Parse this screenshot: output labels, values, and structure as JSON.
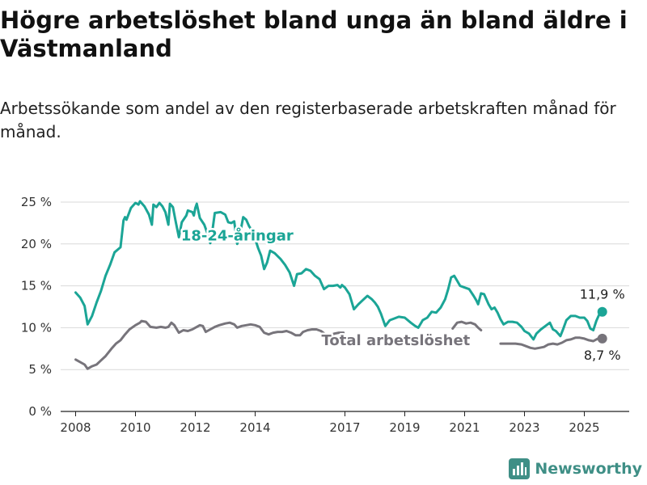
{
  "header": {
    "title": "Högre arbetslöshet bland unga än bland äldre i Västmanland",
    "subtitle": "Arbetssökande som andel av den registerbaserade arbetskraften månad för månad."
  },
  "brand": {
    "name": "Newsworthy",
    "icon": "bar-chart-logo-icon",
    "color": "#3f8f86"
  },
  "chart_data": {
    "type": "line",
    "xlim": [
      2007.5,
      2026.5
    ],
    "ylim": [
      0,
      25
    ],
    "x_ticks": [
      2008,
      2010,
      2012,
      2014,
      2017,
      2019,
      2021,
      2023,
      2025
    ],
    "x_tick_labels": [
      "2008",
      "2010",
      "2012",
      "2014",
      "2017",
      "2019",
      "2021",
      "2023",
      "2025"
    ],
    "y_ticks": [
      0,
      5,
      10,
      15,
      20,
      25
    ],
    "y_tick_labels": [
      "0 %",
      "5 %",
      "10 %",
      "15 %",
      "20 %",
      "25 %"
    ],
    "grid": "horizontal",
    "series": [
      {
        "name": "18-24-åringar",
        "color": "#1ba596",
        "end_label": "11,9 %",
        "points": [
          [
            2008.0,
            14.2
          ],
          [
            2008.15,
            13.6
          ],
          [
            2008.3,
            12.6
          ],
          [
            2008.4,
            10.4
          ],
          [
            2008.55,
            11.4
          ],
          [
            2008.7,
            13.0
          ],
          [
            2008.85,
            14.4
          ],
          [
            2009.0,
            16.2
          ],
          [
            2009.15,
            17.5
          ],
          [
            2009.3,
            19.0
          ],
          [
            2009.5,
            19.6
          ],
          [
            2009.6,
            22.8
          ],
          [
            2009.65,
            23.2
          ],
          [
            2009.7,
            22.9
          ],
          [
            2009.85,
            24.3
          ],
          [
            2010.0,
            24.9
          ],
          [
            2010.1,
            24.7
          ],
          [
            2010.15,
            25.1
          ],
          [
            2010.3,
            24.5
          ],
          [
            2010.45,
            23.5
          ],
          [
            2010.55,
            22.3
          ],
          [
            2010.6,
            24.7
          ],
          [
            2010.7,
            24.4
          ],
          [
            2010.8,
            24.9
          ],
          [
            2010.9,
            24.5
          ],
          [
            2011.0,
            23.8
          ],
          [
            2011.1,
            22.3
          ],
          [
            2011.15,
            24.8
          ],
          [
            2011.25,
            24.4
          ],
          [
            2011.35,
            22.6
          ],
          [
            2011.45,
            20.8
          ],
          [
            2011.55,
            22.6
          ],
          [
            2011.7,
            23.4
          ],
          [
            2011.75,
            24.0
          ],
          [
            2011.9,
            23.8
          ],
          [
            2011.95,
            23.4
          ],
          [
            2012.0,
            24.3
          ],
          [
            2012.05,
            24.8
          ],
          [
            2012.15,
            23.1
          ],
          [
            2012.3,
            22.3
          ],
          [
            2012.4,
            21.3
          ],
          [
            2012.5,
            20.1
          ],
          [
            2012.55,
            21.0
          ],
          [
            2012.65,
            23.7
          ],
          [
            2012.85,
            23.8
          ],
          [
            2013.0,
            23.5
          ],
          [
            2013.1,
            22.6
          ],
          [
            2013.2,
            22.5
          ],
          [
            2013.3,
            22.7
          ],
          [
            2013.4,
            20.0
          ],
          [
            2013.5,
            21.3
          ],
          [
            2013.6,
            23.2
          ],
          [
            2013.7,
            22.9
          ],
          [
            2013.8,
            22.1
          ],
          [
            2013.9,
            21.6
          ],
          [
            2014.0,
            20.6
          ],
          [
            2014.1,
            19.5
          ],
          [
            2014.2,
            18.6
          ],
          [
            2014.3,
            17.0
          ],
          [
            2014.4,
            17.8
          ],
          [
            2014.5,
            19.2
          ],
          [
            2014.65,
            18.9
          ],
          [
            2014.85,
            18.2
          ],
          [
            2015.0,
            17.5
          ],
          [
            2015.15,
            16.6
          ],
          [
            2015.3,
            15.0
          ],
          [
            2015.4,
            16.4
          ],
          [
            2015.55,
            16.5
          ],
          [
            2015.7,
            17.0
          ],
          [
            2015.85,
            16.8
          ],
          [
            2016.0,
            16.2
          ],
          [
            2016.15,
            15.8
          ],
          [
            2016.3,
            14.6
          ],
          [
            2016.45,
            15.0
          ],
          [
            2016.6,
            15.0
          ],
          [
            2016.75,
            15.1
          ],
          [
            2016.85,
            14.8
          ],
          [
            2016.9,
            15.1
          ],
          [
            2017.0,
            14.8
          ],
          [
            2017.15,
            14.0
          ],
          [
            2017.3,
            12.2
          ],
          [
            2017.45,
            12.8
          ],
          [
            2017.6,
            13.3
          ],
          [
            2017.75,
            13.8
          ],
          [
            2017.9,
            13.4
          ],
          [
            2018.0,
            13.0
          ],
          [
            2018.1,
            12.5
          ],
          [
            2018.2,
            11.7
          ],
          [
            2018.35,
            10.2
          ],
          [
            2018.5,
            10.9
          ],
          [
            2018.65,
            11.1
          ],
          [
            2018.8,
            11.3
          ],
          [
            2019.0,
            11.2
          ],
          [
            2019.2,
            10.6
          ],
          [
            2019.35,
            10.2
          ],
          [
            2019.45,
            10.0
          ],
          [
            2019.6,
            10.9
          ],
          [
            2019.75,
            11.2
          ],
          [
            2019.9,
            11.9
          ],
          [
            2020.05,
            11.8
          ],
          [
            2020.2,
            12.4
          ],
          [
            2020.35,
            13.4
          ],
          [
            2020.45,
            14.6
          ],
          [
            2020.55,
            16.0
          ],
          [
            2020.65,
            16.2
          ],
          [
            2020.75,
            15.6
          ],
          [
            2020.85,
            15.0
          ],
          [
            2021.0,
            14.8
          ],
          [
            2021.15,
            14.6
          ],
          [
            2021.3,
            13.8
          ],
          [
            2021.4,
            13.2
          ],
          [
            2021.45,
            12.8
          ],
          [
            2021.55,
            14.1
          ],
          [
            2021.65,
            14.0
          ],
          [
            2021.8,
            12.8
          ],
          [
            2021.9,
            12.2
          ],
          [
            2022.0,
            12.4
          ],
          [
            2022.1,
            11.8
          ],
          [
            2022.2,
            11.0
          ],
          [
            2022.3,
            10.4
          ],
          [
            2022.45,
            10.7
          ],
          [
            2022.6,
            10.7
          ],
          [
            2022.75,
            10.6
          ],
          [
            2022.9,
            10.1
          ],
          [
            2023.0,
            9.6
          ],
          [
            2023.15,
            9.3
          ],
          [
            2023.3,
            8.6
          ],
          [
            2023.4,
            9.3
          ],
          [
            2023.55,
            9.8
          ],
          [
            2023.7,
            10.2
          ],
          [
            2023.85,
            10.6
          ],
          [
            2023.95,
            9.8
          ],
          [
            2024.05,
            9.6
          ],
          [
            2024.2,
            9.0
          ],
          [
            2024.3,
            9.9
          ],
          [
            2024.4,
            10.9
          ],
          [
            2024.55,
            11.4
          ],
          [
            2024.7,
            11.4
          ],
          [
            2024.85,
            11.2
          ],
          [
            2025.0,
            11.2
          ],
          [
            2025.1,
            10.8
          ],
          [
            2025.2,
            9.9
          ],
          [
            2025.3,
            9.7
          ],
          [
            2025.4,
            10.8
          ],
          [
            2025.5,
            11.6
          ],
          [
            2025.6,
            11.9
          ]
        ]
      },
      {
        "name": "Total arbetslöshet",
        "color": "#77747b",
        "end_label": "8,7 %",
        "points": [
          [
            2008.0,
            6.2
          ],
          [
            2008.15,
            5.9
          ],
          [
            2008.3,
            5.6
          ],
          [
            2008.4,
            5.1
          ],
          [
            2008.55,
            5.4
          ],
          [
            2008.7,
            5.6
          ],
          [
            2008.85,
            6.1
          ],
          [
            2009.0,
            6.6
          ],
          [
            2009.2,
            7.5
          ],
          [
            2009.35,
            8.1
          ],
          [
            2009.5,
            8.5
          ],
          [
            2009.65,
            9.2
          ],
          [
            2009.8,
            9.8
          ],
          [
            2010.0,
            10.3
          ],
          [
            2010.15,
            10.6
          ],
          [
            2010.2,
            10.8
          ],
          [
            2010.35,
            10.7
          ],
          [
            2010.5,
            10.1
          ],
          [
            2010.7,
            10.0
          ],
          [
            2010.85,
            10.1
          ],
          [
            2011.0,
            10.0
          ],
          [
            2011.1,
            10.1
          ],
          [
            2011.2,
            10.6
          ],
          [
            2011.3,
            10.3
          ],
          [
            2011.45,
            9.4
          ],
          [
            2011.6,
            9.7
          ],
          [
            2011.75,
            9.6
          ],
          [
            2011.9,
            9.8
          ],
          [
            2012.05,
            10.1
          ],
          [
            2012.15,
            10.3
          ],
          [
            2012.25,
            10.2
          ],
          [
            2012.35,
            9.5
          ],
          [
            2012.5,
            9.8
          ],
          [
            2012.65,
            10.1
          ],
          [
            2012.8,
            10.3
          ],
          [
            2013.0,
            10.5
          ],
          [
            2013.15,
            10.6
          ],
          [
            2013.3,
            10.4
          ],
          [
            2013.4,
            10.0
          ],
          [
            2013.55,
            10.2
          ],
          [
            2013.7,
            10.3
          ],
          [
            2013.85,
            10.4
          ],
          [
            2014.0,
            10.3
          ],
          [
            2014.15,
            10.1
          ],
          [
            2014.3,
            9.4
          ],
          [
            2014.45,
            9.2
          ],
          [
            2014.6,
            9.4
          ],
          [
            2014.75,
            9.5
          ],
          [
            2014.9,
            9.5
          ],
          [
            2015.05,
            9.6
          ],
          [
            2015.2,
            9.4
          ],
          [
            2015.35,
            9.1
          ],
          [
            2015.5,
            9.1
          ],
          [
            2015.6,
            9.5
          ],
          [
            2015.75,
            9.7
          ],
          [
            2015.9,
            9.8
          ],
          [
            2016.05,
            9.8
          ],
          [
            2016.2,
            9.6
          ],
          [
            2016.35,
            9.2
          ],
          [
            2016.5,
            9.1
          ],
          [
            2016.65,
            9.3
          ],
          [
            2016.8,
            9.4
          ],
          [
            2016.95,
            9.4
          ]
        ],
        "segments_after_label": [
          [
            [
              2020.6,
              9.9
            ],
            [
              2020.75,
              10.6
            ],
            [
              2020.9,
              10.7
            ],
            [
              2021.05,
              10.5
            ],
            [
              2021.2,
              10.6
            ],
            [
              2021.35,
              10.4
            ],
            [
              2021.45,
              10.0
            ],
            [
              2021.55,
              9.7
            ]
          ],
          [
            [
              2022.2,
              8.1
            ],
            [
              2022.45,
              8.1
            ],
            [
              2022.7,
              8.1
            ],
            [
              2022.9,
              8.0
            ],
            [
              2023.05,
              7.8
            ],
            [
              2023.2,
              7.6
            ],
            [
              2023.35,
              7.5
            ],
            [
              2023.5,
              7.6
            ],
            [
              2023.65,
              7.7
            ],
            [
              2023.8,
              8.0
            ],
            [
              2023.95,
              8.1
            ],
            [
              2024.1,
              8.0
            ],
            [
              2024.25,
              8.2
            ],
            [
              2024.4,
              8.5
            ],
            [
              2024.55,
              8.6
            ],
            [
              2024.7,
              8.8
            ],
            [
              2024.85,
              8.8
            ],
            [
              2025.0,
              8.7
            ],
            [
              2025.15,
              8.5
            ],
            [
              2025.3,
              8.4
            ],
            [
              2025.45,
              8.7
            ],
            [
              2025.6,
              8.7
            ]
          ]
        ]
      }
    ],
    "annotations": [
      {
        "text": "18-24-åringar",
        "series": "18-24-åringar",
        "x": 2013.4,
        "y": 21.0
      },
      {
        "text": "Total arbetslöshet",
        "series": "Total arbetslöshet",
        "x": 2018.7,
        "y": 8.5
      }
    ]
  }
}
